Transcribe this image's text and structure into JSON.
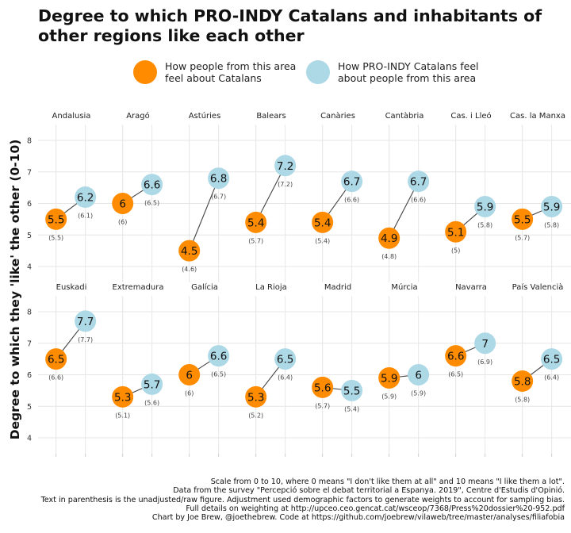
{
  "chart_data": {
    "type": "scatter",
    "title": "Degree to which PRO-INDY Catalans and inhabitants of other regions like each other",
    "title_lines": [
      "Degree to which PRO-INDY Catalans and inhabitants of",
      "other regions like each other"
    ],
    "ylabel": "Degree to which they 'like' the other (0-10)",
    "ylim": [
      3.5,
      8.5
    ],
    "yticks": [
      "4",
      "5",
      "6",
      "7",
      "8"
    ],
    "grid": true,
    "legend_position": "top",
    "colors": {
      "about_catalans": "#ff8c00",
      "pro_indy_feel": "#add8e6",
      "line": "#444444",
      "grid": "#e6e6e6"
    },
    "legend": [
      {
        "lines": [
          "How people from this area",
          "feel about Catalans"
        ],
        "color": "#ff8c00"
      },
      {
        "lines": [
          "How PRO-INDY Catalans feel",
          "about people from this area"
        ],
        "color": "#add8e6"
      }
    ],
    "panels": [
      {
        "region": "Andalusia",
        "area_feels": 5.5,
        "area_feels_label": "5.5",
        "area_feels_raw": "(5.5)",
        "indy_feels": 6.2,
        "indy_feels_label": "6.2",
        "indy_feels_raw": "(6.1)"
      },
      {
        "region": "Aragó",
        "area_feels": 6.0,
        "area_feels_label": "6",
        "area_feels_raw": "(6)",
        "indy_feels": 6.6,
        "indy_feels_label": "6.6",
        "indy_feels_raw": "(6.5)"
      },
      {
        "region": "Astúries",
        "area_feels": 4.5,
        "area_feels_label": "4.5",
        "area_feels_raw": "(4.6)",
        "indy_feels": 6.8,
        "indy_feels_label": "6.8",
        "indy_feels_raw": "(6.7)"
      },
      {
        "region": "Balears",
        "area_feels": 5.4,
        "area_feels_label": "5.4",
        "area_feels_raw": "(5.7)",
        "indy_feels": 7.2,
        "indy_feels_label": "7.2",
        "indy_feels_raw": "(7.2)"
      },
      {
        "region": "Canàries",
        "area_feels": 5.4,
        "area_feels_label": "5.4",
        "area_feels_raw": "(5.4)",
        "indy_feels": 6.7,
        "indy_feels_label": "6.7",
        "indy_feels_raw": "(6.6)"
      },
      {
        "region": "Cantàbria",
        "area_feels": 4.9,
        "area_feels_label": "4.9",
        "area_feels_raw": "(4.8)",
        "indy_feels": 6.7,
        "indy_feels_label": "6.7",
        "indy_feels_raw": "(6.6)"
      },
      {
        "region": "Cas. i Lleó",
        "area_feels": 5.1,
        "area_feels_label": "5.1",
        "area_feels_raw": "(5)",
        "indy_feels": 5.9,
        "indy_feels_label": "5.9",
        "indy_feels_raw": "(5.8)"
      },
      {
        "region": "Cas. la Manxa",
        "area_feels": 5.5,
        "area_feels_label": "5.5",
        "area_feels_raw": "(5.7)",
        "indy_feels": 5.9,
        "indy_feels_label": "5.9",
        "indy_feels_raw": "(5.8)"
      },
      {
        "region": "Euskadi",
        "area_feels": 6.5,
        "area_feels_label": "6.5",
        "area_feels_raw": "(6.6)",
        "indy_feels": 7.7,
        "indy_feels_label": "7.7",
        "indy_feels_raw": "(7.7)"
      },
      {
        "region": "Extremadura",
        "area_feels": 5.3,
        "area_feels_label": "5.3",
        "area_feels_raw": "(5.1)",
        "indy_feels": 5.7,
        "indy_feels_label": "5.7",
        "indy_feels_raw": "(5.6)"
      },
      {
        "region": "Galícia",
        "area_feels": 6.0,
        "area_feels_label": "6",
        "area_feels_raw": "(6)",
        "indy_feels": 6.6,
        "indy_feels_label": "6.6",
        "indy_feels_raw": "(6.5)"
      },
      {
        "region": "La Rioja",
        "area_feels": 5.3,
        "area_feels_label": "5.3",
        "area_feels_raw": "(5.2)",
        "indy_feels": 6.5,
        "indy_feels_label": "6.5",
        "indy_feels_raw": "(6.4)"
      },
      {
        "region": "Madrid",
        "area_feels": 5.6,
        "area_feels_label": "5.6",
        "area_feels_raw": "(5.7)",
        "indy_feels": 5.5,
        "indy_feels_label": "5.5",
        "indy_feels_raw": "(5.4)"
      },
      {
        "region": "Múrcia",
        "area_feels": 5.9,
        "area_feels_label": "5.9",
        "area_feels_raw": "(5.9)",
        "indy_feels": 6.0,
        "indy_feels_label": "6",
        "indy_feels_raw": "(5.9)"
      },
      {
        "region": "Navarra",
        "area_feels": 6.6,
        "area_feels_label": "6.6",
        "area_feels_raw": "(6.5)",
        "indy_feels": 7.0,
        "indy_feels_label": "7",
        "indy_feels_raw": "(6.9)"
      },
      {
        "region": "País Valencià",
        "area_feels": 5.8,
        "area_feels_label": "5.8",
        "area_feels_raw": "(5.8)",
        "indy_feels": 6.5,
        "indy_feels_label": "6.5",
        "indy_feels_raw": "(6.4)"
      }
    ]
  },
  "caption": {
    "line1": "Scale from 0 to 10, where 0 means \"I don't like them at all\" and 10 means \"I like them a lot\".",
    "line2": "Data from the survey \"Percepció sobre el debat territorial a Espanya. 2019\", Centre d'Estudis d'Opinió.",
    "line3": "Text in parenthesis is the unadjusted/raw figure. Adjustment used demographic factors to generate weights to account for sampling bias.",
    "line4": "Full details on weighting at http://upceo.ceo.gencat.cat/wsceop/7368/Press%20dossier%20-952.pdf",
    "line5": "Chart by Joe Brew, @joethebrew. Code at https://github.com/joebrew/vilaweb/tree/master/analyses/filiafobia"
  }
}
